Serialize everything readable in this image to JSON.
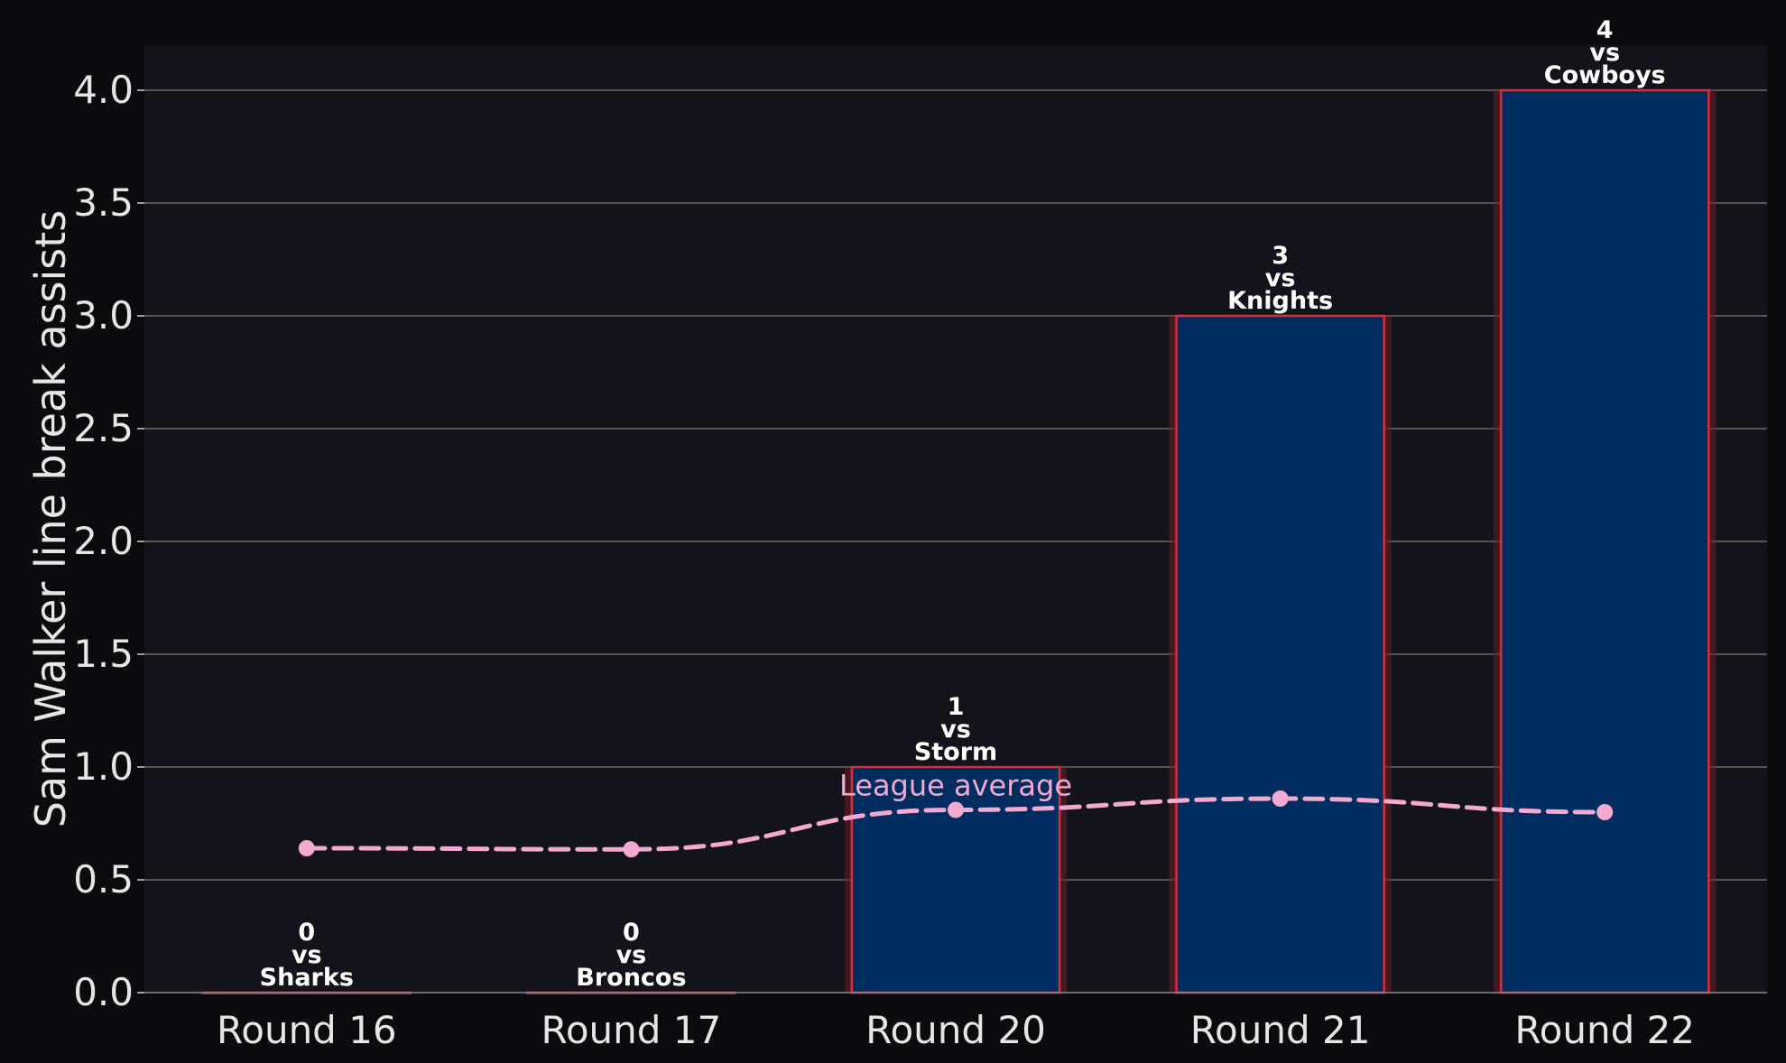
{
  "colors": {
    "page_background": "#0b0b0f",
    "plot_background": "#13141b",
    "bar_fill": "#002d5f",
    "bar_edge": "#d62f3c",
    "bar_glow": "#6a1c26",
    "grid": "#6a6a6e",
    "axis_text": "#e6e6e6",
    "label_text": "#ffffff",
    "average_line": "#f4a9d0"
  },
  "chart_data": {
    "type": "bar",
    "ylabel": "Sam Walker line break assists",
    "xlabel": "",
    "ylim": [
      0,
      4.2
    ],
    "yticks": [
      0.0,
      0.5,
      1.0,
      1.5,
      2.0,
      2.5,
      3.0,
      3.5,
      4.0
    ],
    "ytick_labels": [
      "0.0",
      "0.5",
      "1.0",
      "1.5",
      "2.0",
      "2.5",
      "3.0",
      "3.5",
      "4.0"
    ],
    "grid": "horizontal",
    "categories": [
      "Round 16",
      "Round 17",
      "Round 20",
      "Round 21",
      "Round 22"
    ],
    "values": [
      0,
      0,
      1,
      3,
      4
    ],
    "opponents": [
      "Sharks",
      "Broncos",
      "Storm",
      "Knights",
      "Cowboys"
    ],
    "bar_label_middle": "vs",
    "average_series": {
      "name": "League average",
      "style": "dashed line with markers",
      "values": [
        0.64,
        0.635,
        0.81,
        0.86,
        0.8
      ]
    }
  }
}
